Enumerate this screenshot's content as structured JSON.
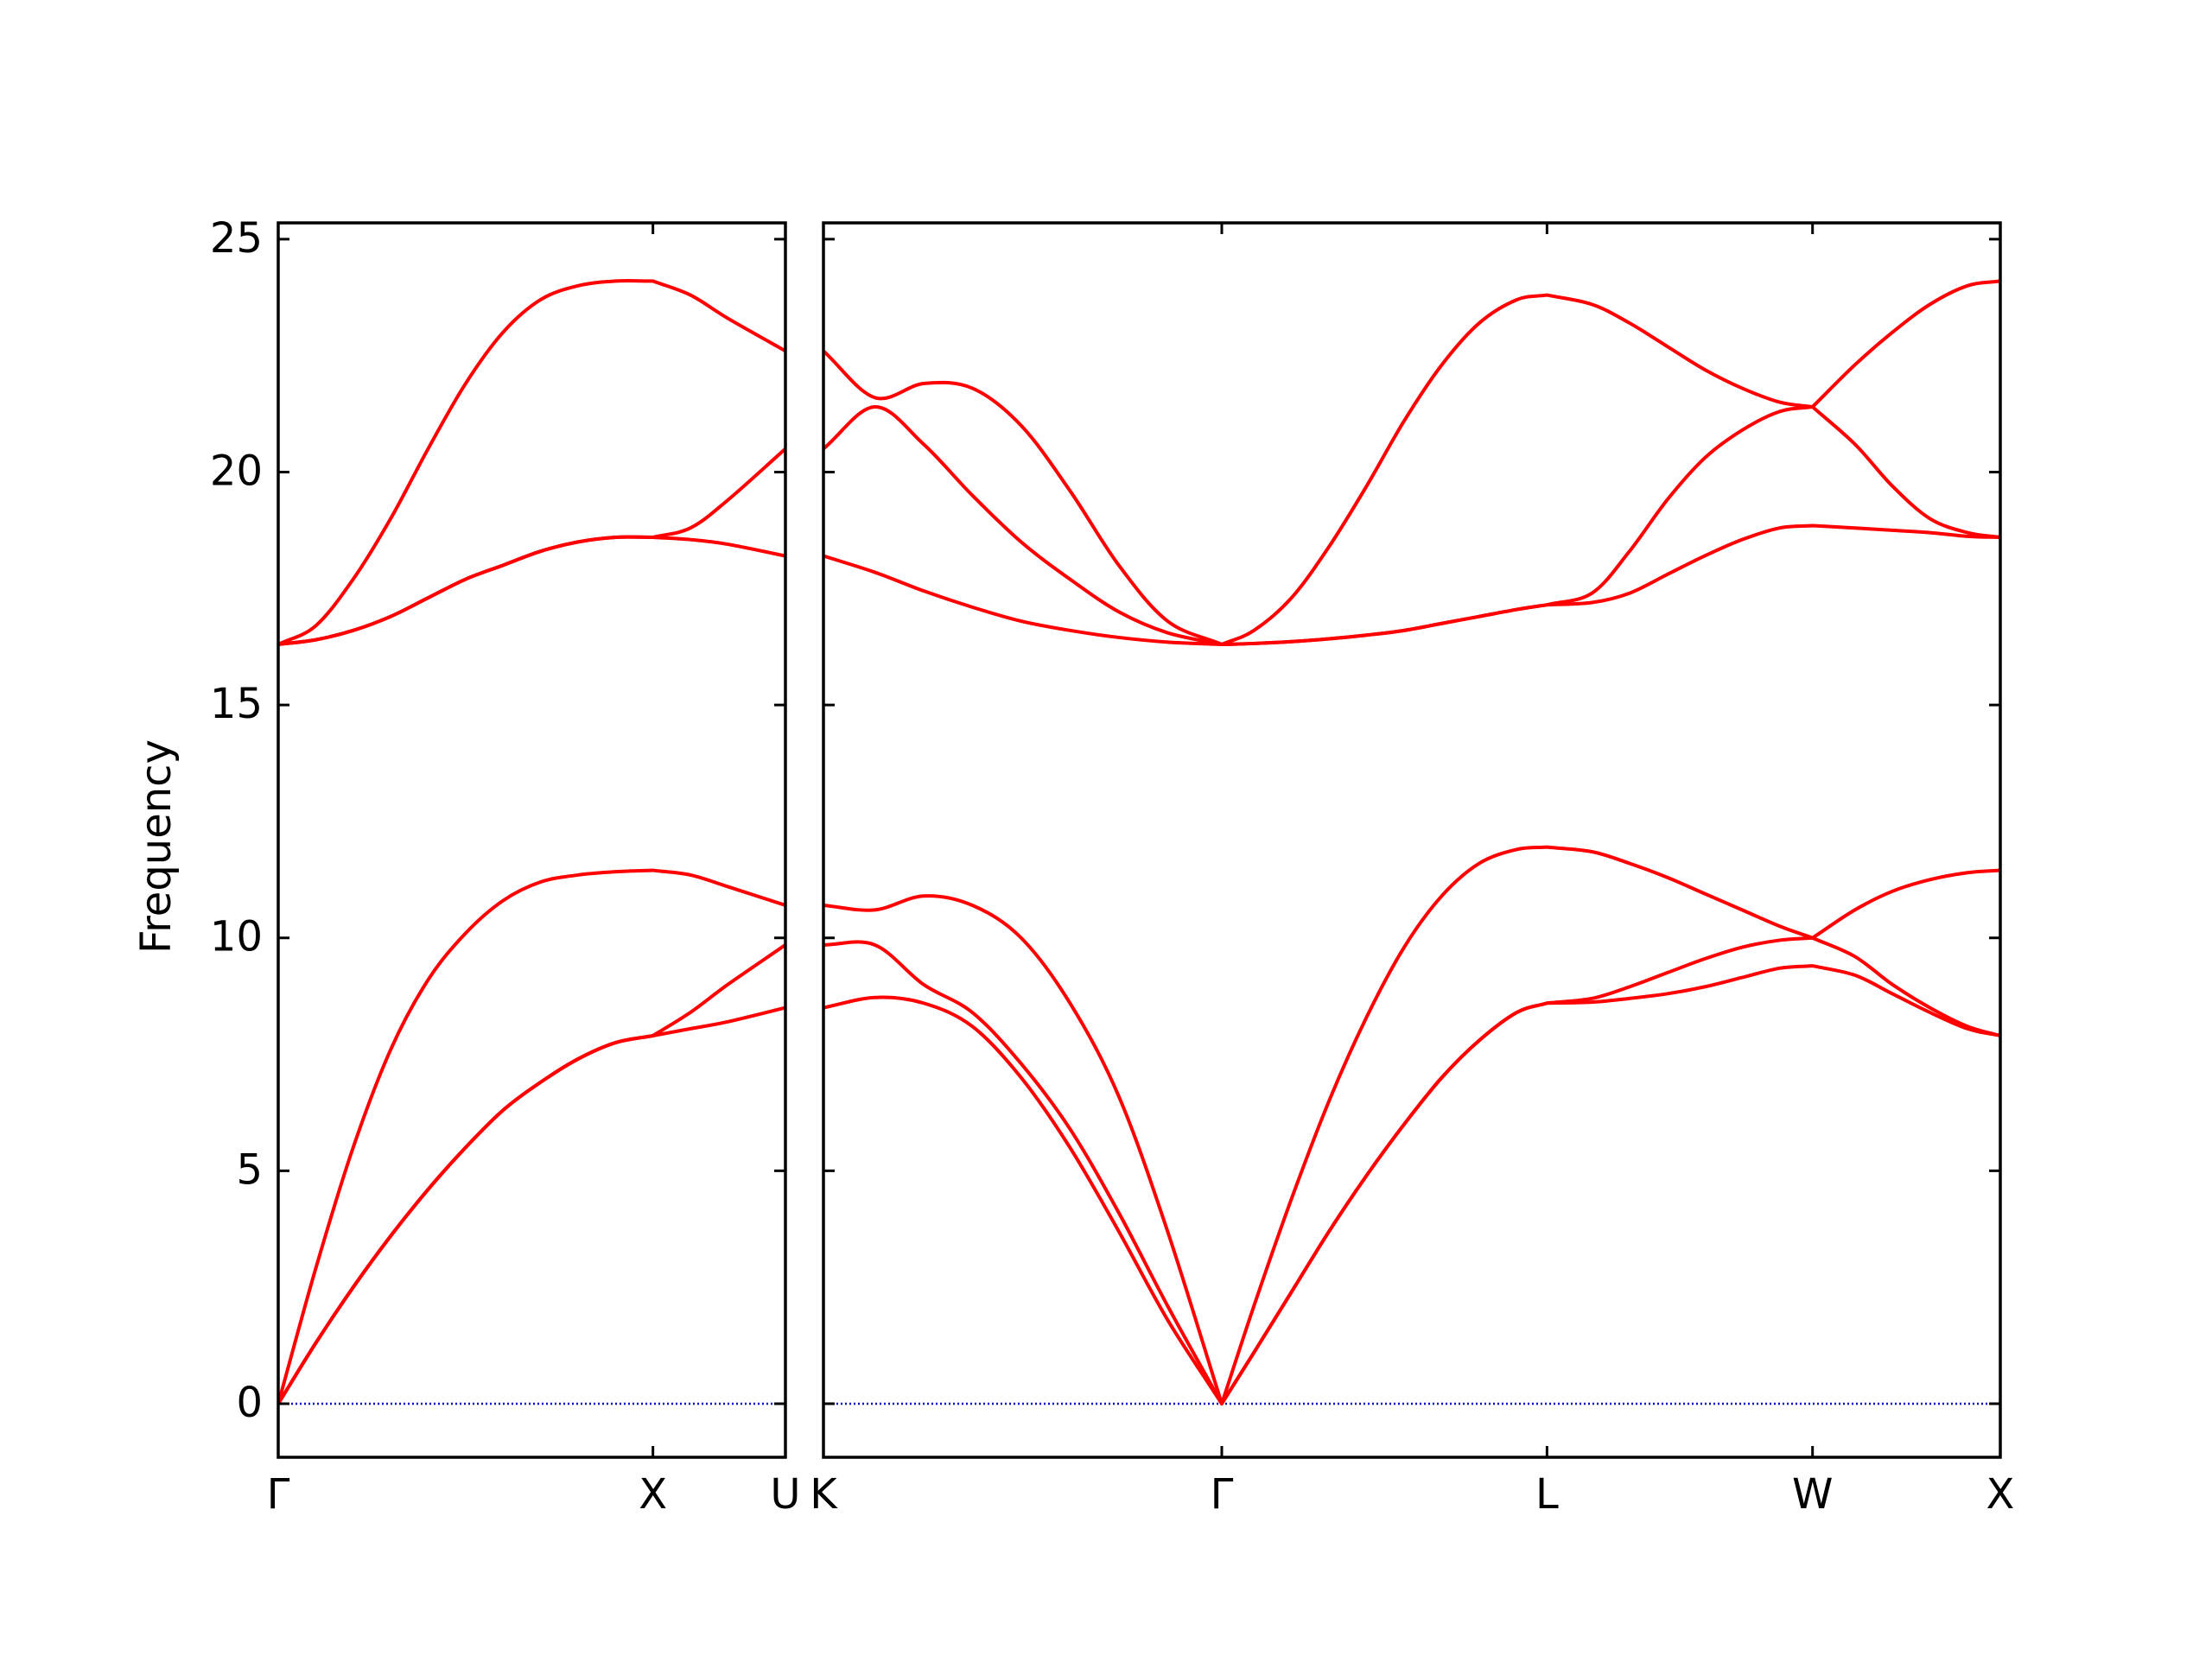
{
  "chart_data": [
    {
      "type": "line",
      "ylabel": "Frequency",
      "x": [
        0,
        0.1,
        0.2,
        0.3,
        0.4,
        0.5,
        0.6,
        0.7,
        0.8,
        0.9,
        1.0,
        1.1,
        1.2,
        1.3536
      ],
      "xlim": [
        0,
        1.3536
      ],
      "xticks": [
        {
          "value": 0,
          "label": "Γ"
        },
        {
          "value": 1.0,
          "label": "X"
        },
        {
          "value": 1.3536,
          "label": "U"
        }
      ],
      "ylim": [
        -1.15,
        25.35
      ],
      "yticks": [
        0,
        5,
        10,
        15,
        20,
        25
      ],
      "hline": 0,
      "hline_color": "#0000cc",
      "series": [
        {
          "color": "#ff0000",
          "values": [
            0,
            1.3,
            2.5,
            3.6,
            4.6,
            5.5,
            6.3,
            6.9,
            7.4,
            7.75,
            7.9,
            8.05,
            8.2,
            8.5
          ]
        },
        {
          "color": "#ff0000",
          "values": [
            0,
            1.3,
            2.5,
            3.6,
            4.6,
            5.5,
            6.3,
            6.9,
            7.4,
            7.75,
            7.9,
            8.4,
            9.0,
            9.85
          ]
        },
        {
          "color": "#ff0000",
          "values": [
            0,
            2.9,
            5.5,
            7.6,
            9.1,
            10.1,
            10.8,
            11.2,
            11.35,
            11.42,
            11.45,
            11.35,
            11.1,
            10.7
          ]
        },
        {
          "color": "#ff0000",
          "values": [
            16.3,
            16.4,
            16.6,
            16.9,
            17.3,
            17.7,
            18.0,
            18.3,
            18.5,
            18.6,
            18.6,
            18.55,
            18.45,
            18.2
          ]
        },
        {
          "color": "#ff0000",
          "values": [
            16.3,
            16.4,
            16.6,
            16.9,
            17.3,
            17.7,
            18.0,
            18.3,
            18.5,
            18.6,
            18.6,
            18.8,
            19.4,
            20.5
          ]
        },
        {
          "color": "#ff0000",
          "values": [
            16.3,
            16.7,
            17.7,
            19.0,
            20.5,
            21.9,
            23.0,
            23.7,
            24.0,
            24.1,
            24.1,
            23.8,
            23.3,
            22.6
          ]
        }
      ]
    },
    {
      "type": "line",
      "x": [
        1.3536,
        1.49,
        1.62,
        1.75,
        1.88,
        2.01,
        2.14,
        2.27,
        2.4143,
        2.5,
        2.6,
        2.7,
        2.8,
        2.9,
        3.0,
        3.1,
        3.2,
        3.2803,
        3.4,
        3.5,
        3.6,
        3.7,
        3.8,
        3.9,
        3.9874,
        4.1,
        4.2,
        4.3,
        4.4,
        4.4874
      ],
      "xlim": [
        1.3536,
        4.4874
      ],
      "xticks": [
        {
          "value": 1.3536,
          "label": "K"
        },
        {
          "value": 2.4143,
          "label": "Γ"
        },
        {
          "value": 3.2803,
          "label": "L"
        },
        {
          "value": 3.9874,
          "label": "W"
        },
        {
          "value": 4.4874,
          "label": "X"
        }
      ],
      "ylim": [
        -1.15,
        25.35
      ],
      "yticks": [
        0,
        5,
        10,
        15,
        20,
        25
      ],
      "hline": 0,
      "hline_color": "#0000cc",
      "series": [
        {
          "color": "#ff0000",
          "values": [
            8.5,
            8.72,
            8.6,
            8.1,
            7.0,
            5.5,
            3.7,
            1.8,
            0,
            1.1,
            2.4,
            3.7,
            4.9,
            6.0,
            7.0,
            7.8,
            8.4,
            8.6,
            8.62,
            8.7,
            8.8,
            8.95,
            9.15,
            9.35,
            9.4,
            9.2,
            8.8,
            8.4,
            8.05,
            7.9
          ]
        },
        {
          "color": "#ff0000",
          "values": [
            9.85,
            9.85,
            9.0,
            8.4,
            7.3,
            5.9,
            4.1,
            2.1,
            0,
            1.1,
            2.4,
            3.7,
            4.9,
            6.0,
            7.0,
            7.8,
            8.4,
            8.6,
            8.7,
            8.95,
            9.25,
            9.55,
            9.8,
            9.95,
            10.0,
            9.6,
            9.0,
            8.5,
            8.1,
            7.9
          ]
        },
        {
          "color": "#ff0000",
          "values": [
            10.7,
            10.6,
            10.9,
            10.7,
            10.0,
            8.6,
            6.6,
            3.7,
            0,
            2.1,
            4.4,
            6.5,
            8.3,
            9.8,
            10.9,
            11.6,
            11.9,
            11.95,
            11.85,
            11.6,
            11.3,
            10.95,
            10.6,
            10.25,
            10.0,
            10.6,
            11.0,
            11.25,
            11.4,
            11.45
          ]
        },
        {
          "color": "#ff0000",
          "values": [
            18.2,
            17.85,
            17.45,
            17.1,
            16.8,
            16.6,
            16.45,
            16.35,
            16.3,
            16.32,
            16.36,
            16.42,
            16.5,
            16.6,
            16.75,
            16.9,
            17.05,
            17.15,
            17.2,
            17.4,
            17.8,
            18.2,
            18.55,
            18.8,
            18.85,
            18.8,
            18.75,
            18.7,
            18.62,
            18.6
          ]
        },
        {
          "color": "#ff0000",
          "values": [
            20.5,
            21.4,
            20.6,
            19.5,
            18.5,
            17.7,
            17.0,
            16.55,
            16.3,
            16.32,
            16.36,
            16.42,
            16.5,
            16.6,
            16.75,
            16.9,
            17.05,
            17.15,
            17.4,
            18.3,
            19.4,
            20.3,
            20.9,
            21.3,
            21.4,
            20.6,
            19.7,
            19.0,
            18.7,
            18.6
          ]
        },
        {
          "color": "#ff0000",
          "values": [
            22.6,
            21.6,
            21.9,
            21.8,
            21.0,
            19.6,
            18.0,
            16.8,
            16.3,
            16.6,
            17.3,
            18.4,
            19.7,
            21.1,
            22.3,
            23.2,
            23.7,
            23.8,
            23.6,
            23.2,
            22.7,
            22.2,
            21.8,
            21.5,
            21.4,
            22.3,
            23.0,
            23.6,
            24.0,
            24.1
          ]
        }
      ]
    }
  ]
}
